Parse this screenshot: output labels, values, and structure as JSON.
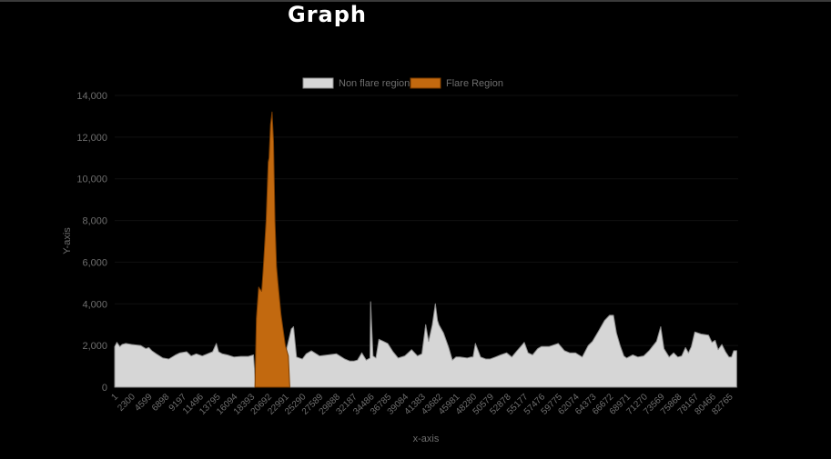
{
  "page": {
    "title": "Graph"
  },
  "colors": {
    "background": "#000000",
    "non_flare_fill": "#d6d6d6",
    "non_flare_stroke": "#8c8c8c",
    "flare_fill": "#c2690f",
    "flare_stroke": "#7a3c00",
    "tick_text": "#6e6e6e"
  },
  "chart_data": {
    "type": "area",
    "title": "",
    "xlabel": "x-axis",
    "ylabel": "Y-axis",
    "ylim": [
      0,
      14000
    ],
    "xlim": [
      1,
      84000
    ],
    "yticks": [
      0,
      2000,
      4000,
      6000,
      8000,
      10000,
      12000,
      14000
    ],
    "ytick_labels": [
      "0",
      "2,000",
      "4,000",
      "6,000",
      "8,000",
      "10,000",
      "12,000",
      "14,000"
    ],
    "xtick_labels": [
      "1",
      "2300",
      "4599",
      "6898",
      "9197",
      "11496",
      "13795",
      "16094",
      "18393",
      "20692",
      "22991",
      "25290",
      "27589",
      "29888",
      "32187",
      "34486",
      "36785",
      "39084",
      "41383",
      "43682",
      "45981",
      "48280",
      "50579",
      "52878",
      "55177",
      "57476",
      "59775",
      "62074",
      "64373",
      "66672",
      "68971",
      "71270",
      "73569",
      "75868",
      "78167",
      "80466",
      "82765"
    ],
    "legend": {
      "position": "top",
      "entries": [
        "Non flare region",
        "Flare Region"
      ]
    },
    "series": [
      {
        "name": "Non flare region",
        "x": [
          1,
          300,
          700,
          1000,
          1500,
          2300,
          3500,
          4200,
          4599,
          5000,
          5600,
          6500,
          7300,
          8200,
          8800,
          9700,
          10300,
          11000,
          11800,
          12500,
          13200,
          13700,
          14000,
          14500,
          15200,
          16094,
          17000,
          18000,
          18700,
          19000,
          22800,
          23000,
          23800,
          24100,
          24500,
          25290,
          25800,
          26500,
          27589,
          28700,
          29888,
          31000,
          31700,
          32187,
          32700,
          33300,
          33900,
          34400,
          34486,
          34800,
          35200,
          35600,
          36200,
          36785,
          37500,
          38200,
          39084,
          40000,
          40800,
          41383,
          41900,
          42300,
          42800,
          43200,
          43500,
          43682,
          44300,
          45000,
          45500,
          45981,
          46500,
          47500,
          48000,
          48280,
          48600,
          49300,
          50000,
          50579,
          51300,
          52000,
          52800,
          53500,
          54200,
          54700,
          55177,
          55700,
          56300,
          57000,
          57476,
          58500,
          59775,
          60600,
          61300,
          62074,
          63000,
          63800,
          64373,
          65200,
          66000,
          66672,
          67200,
          67600,
          68100,
          68600,
          68971,
          69800,
          70500,
          71270,
          72000,
          73000,
          73569,
          74000,
          74700,
          75300,
          75868,
          76400,
          76900,
          77300,
          77700,
          78167,
          79000,
          80000,
          80466,
          80900,
          81300,
          81800,
          82300,
          82765,
          83100,
          83400,
          83800
        ],
        "values": [
          1950,
          2150,
          1950,
          2050,
          2100,
          2050,
          2000,
          1850,
          1900,
          1750,
          1600,
          1400,
          1350,
          1550,
          1650,
          1700,
          1500,
          1600,
          1500,
          1600,
          1700,
          2100,
          1700,
          1600,
          1550,
          1450,
          1480,
          1480,
          1550,
          0,
          0,
          1600,
          2800,
          2900,
          1450,
          1350,
          1600,
          1750,
          1500,
          1550,
          1600,
          1350,
          1250,
          1250,
          1300,
          1650,
          1300,
          1400,
          4100,
          1500,
          1400,
          2300,
          2200,
          2100,
          1700,
          1400,
          1500,
          1800,
          1500,
          1600,
          3000,
          2200,
          3000,
          4000,
          3200,
          3000,
          2600,
          1900,
          1300,
          1450,
          1450,
          1400,
          1450,
          1450,
          2100,
          1450,
          1350,
          1350,
          1450,
          1550,
          1650,
          1450,
          1750,
          1950,
          2150,
          1650,
          1550,
          1850,
          1950,
          1950,
          2100,
          1750,
          1650,
          1650,
          1450,
          2000,
          2200,
          2700,
          3200,
          3450,
          3450,
          2600,
          2000,
          1500,
          1400,
          1550,
          1450,
          1500,
          1750,
          2200,
          2900,
          1850,
          1450,
          1650,
          1450,
          1500,
          1900,
          1650,
          1950,
          2650,
          2550,
          2500,
          2150,
          2250,
          1800,
          2050,
          1700,
          1450,
          1450,
          1750,
          1750
        ]
      },
      {
        "name": "Flare Region",
        "x": [
          18900,
          19100,
          19400,
          19800,
          20000,
          20400,
          20692,
          20800,
          21000,
          21200,
          21400,
          21600,
          21800,
          22000,
          22400,
          22991,
          23400,
          23600
        ],
        "values": [
          0,
          3300,
          4800,
          4600,
          5600,
          8000,
          10800,
          11000,
          12600,
          13200,
          11800,
          8000,
          5800,
          5000,
          3500,
          2000,
          1500,
          0
        ]
      }
    ]
  }
}
